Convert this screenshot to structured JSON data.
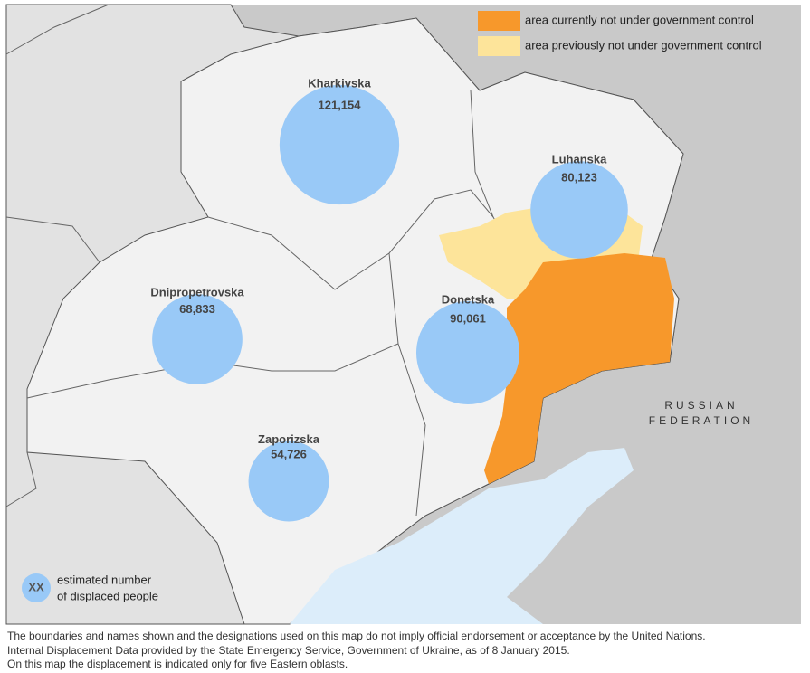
{
  "legend": {
    "items": [
      "area currently not under government control",
      "area previously not under government control"
    ],
    "bubble_symbol": "XX",
    "bubble_text": [
      "estimated number",
      "of displaced people"
    ]
  },
  "regions": [
    {
      "name": "Kharkivska",
      "value": 121154,
      "value_label": "121,154"
    },
    {
      "name": "Luhanska",
      "value": 80123,
      "value_label": "80,123"
    },
    {
      "name": "Donetska",
      "value": 90061,
      "value_label": "90,061"
    },
    {
      "name": "Dnipropetrovska",
      "value": 68833,
      "value_label": "68,833"
    },
    {
      "name": "Zaporizska",
      "value": 54726,
      "value_label": "54,726"
    }
  ],
  "country_label": [
    "RUSSIAN",
    "FEDERATION"
  ],
  "footer": [
    "The boundaries and names shown and the designations used on this map do not imply official endorsement or acceptance by the United Nations.",
    "Internal Displacement Data provided by the State Emergency Service, Government of Ukraine, as of 8 January 2015.",
    "On this map the displacement is indicated only for five Eastern oblasts."
  ]
}
